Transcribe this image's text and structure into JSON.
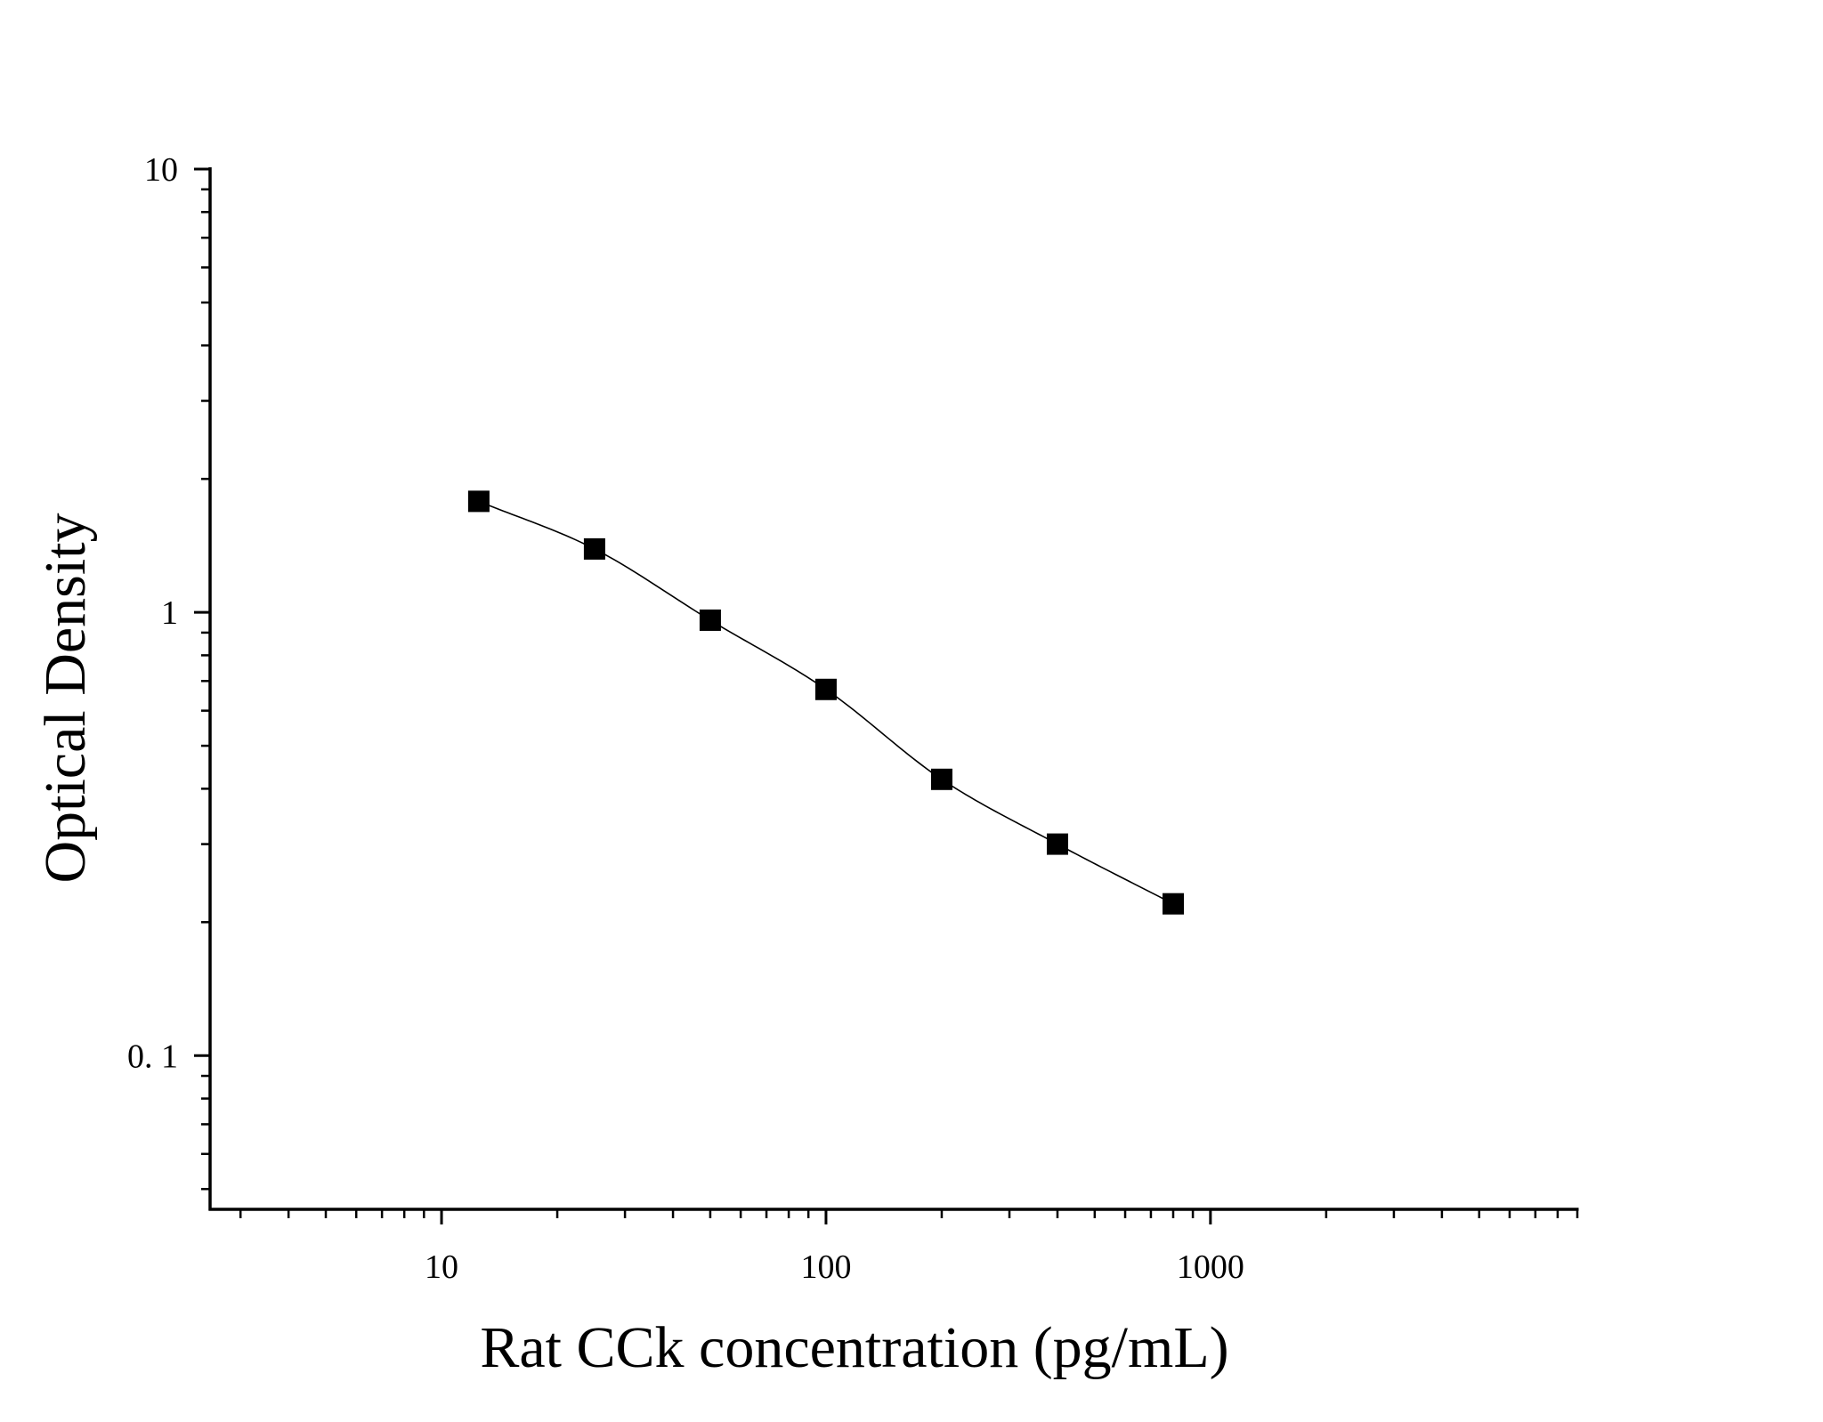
{
  "chart_data": {
    "type": "scatter",
    "xlabel": "Rat CCk concentration (pg/mL)",
    "ylabel": "Optical Density",
    "x_scale": "log",
    "y_scale": "log",
    "xlim": [
      2.5,
      9000
    ],
    "ylim": [
      0.045,
      10
    ],
    "x_ticks": [
      10,
      100,
      1000
    ],
    "x_tick_labels": [
      "10",
      "100",
      "1000"
    ],
    "y_ticks": [
      0.1,
      1,
      10
    ],
    "y_tick_labels": [
      "0. 1",
      "1",
      "10"
    ],
    "grid": false,
    "legend": "none",
    "series": [
      {
        "marker": "square",
        "fit_line": true,
        "color": "#000000",
        "x": [
          12.5,
          25,
          50,
          100,
          200,
          400,
          800
        ],
        "y": [
          1.78,
          1.39,
          0.96,
          0.67,
          0.42,
          0.3,
          0.22
        ]
      }
    ]
  }
}
